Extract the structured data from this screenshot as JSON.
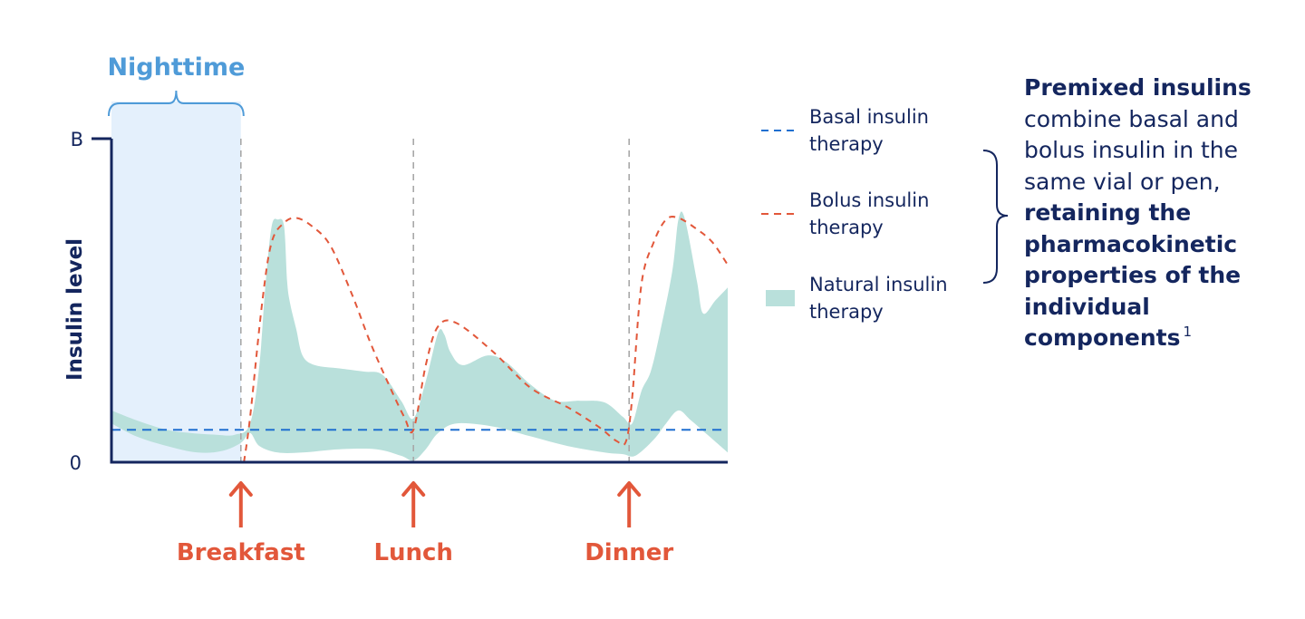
{
  "chart_data": {
    "type": "line",
    "ylabel": "Insulin level",
    "xlabel": "",
    "y_ticks": [
      "B",
      "0"
    ],
    "ylim": [
      0,
      100
    ],
    "xlim": [
      0,
      100
    ],
    "grid": false,
    "legend_position": "right",
    "legend": [
      {
        "name_line1": "Basal insulin",
        "name_line2": "therapy",
        "style": "dashed-line",
        "color": "#1f6fd0"
      },
      {
        "name_line1": "Bolus insulin",
        "name_line2": "therapy",
        "style": "dashed-line",
        "color": "#e2573a"
      },
      {
        "name_line1": "Natural insulin",
        "name_line2": "therapy",
        "style": "filled-area",
        "color": "#b9e0db"
      }
    ],
    "nighttime": {
      "label": "Nighttime",
      "x_start": 0,
      "x_end": 21
    },
    "meals": [
      {
        "label": "Breakfast",
        "x": 21
      },
      {
        "label": "Lunch",
        "x": 49
      },
      {
        "label": "Dinner",
        "x": 84
      }
    ],
    "series": [
      {
        "name": "Basal insulin therapy",
        "type": "line",
        "points": [
          [
            0,
            10
          ],
          [
            100,
            10
          ]
        ]
      },
      {
        "name": "Bolus insulin therapy",
        "type": "line",
        "points": [
          [
            21.5,
            0
          ],
          [
            22.5,
            14
          ],
          [
            24.5,
            50
          ],
          [
            26,
            68
          ],
          [
            28,
            74
          ],
          [
            30,
            75.5
          ],
          [
            32.5,
            73
          ],
          [
            35.5,
            67
          ],
          [
            39,
            52
          ],
          [
            42,
            37
          ],
          [
            45,
            24
          ],
          [
            47.5,
            14
          ],
          [
            49,
            10
          ],
          [
            51,
            30
          ],
          [
            53,
            42
          ],
          [
            56,
            43
          ],
          [
            62,
            34
          ],
          [
            68,
            23
          ],
          [
            74,
            17
          ],
          [
            79,
            11
          ],
          [
            82,
            6.5
          ],
          [
            83.5,
            6.5
          ],
          [
            84.5,
            20
          ],
          [
            86,
            55
          ],
          [
            88,
            68
          ],
          [
            90,
            75
          ],
          [
            92,
            75.5
          ],
          [
            95,
            72
          ],
          [
            97.5,
            68
          ],
          [
            100,
            61
          ]
        ]
      },
      {
        "name": "Natural insulin therapy",
        "type": "band",
        "upper": [
          [
            0,
            16
          ],
          [
            4,
            13
          ],
          [
            9,
            10
          ],
          [
            13,
            9
          ],
          [
            17,
            8.5
          ],
          [
            20,
            8.5
          ],
          [
            22.5,
            12
          ],
          [
            24,
            30
          ],
          [
            25,
            55
          ],
          [
            26,
            73
          ],
          [
            27,
            75
          ],
          [
            28,
            73
          ],
          [
            28.5,
            56
          ],
          [
            29,
            49
          ],
          [
            30,
            41
          ],
          [
            31,
            33
          ],
          [
            33,
            30
          ],
          [
            37,
            29
          ],
          [
            41,
            28
          ],
          [
            44,
            27
          ],
          [
            47,
            19
          ],
          [
            49,
            13.5
          ],
          [
            51,
            25
          ],
          [
            53,
            40
          ],
          [
            54,
            39.5
          ],
          [
            55,
            34
          ],
          [
            57,
            30
          ],
          [
            61,
            33
          ],
          [
            64,
            31
          ],
          [
            68,
            24
          ],
          [
            72,
            19
          ],
          [
            76,
            19
          ],
          [
            80,
            18.5
          ],
          [
            83,
            14
          ],
          [
            84.5,
            12
          ],
          [
            86,
            22
          ],
          [
            87.5,
            28
          ],
          [
            89,
            40
          ],
          [
            91,
            59
          ],
          [
            92,
            75
          ],
          [
            93,
            75.5
          ],
          [
            95,
            56
          ],
          [
            96,
            46
          ],
          [
            98,
            50
          ],
          [
            100,
            54
          ]
        ],
        "lower": [
          [
            0,
            12
          ],
          [
            4,
            8
          ],
          [
            9,
            5
          ],
          [
            14,
            3
          ],
          [
            18,
            3.5
          ],
          [
            21,
            6
          ],
          [
            22.5,
            9
          ],
          [
            24,
            5
          ],
          [
            27,
            3
          ],
          [
            31,
            3
          ],
          [
            37,
            4
          ],
          [
            43,
            4
          ],
          [
            47,
            2
          ],
          [
            49,
            0.5
          ],
          [
            51,
            4
          ],
          [
            53,
            9
          ],
          [
            56,
            12
          ],
          [
            62,
            11
          ],
          [
            68,
            8
          ],
          [
            74,
            5
          ],
          [
            80,
            3
          ],
          [
            83,
            2.5
          ],
          [
            85,
            2
          ],
          [
            88,
            7
          ],
          [
            90,
            12
          ],
          [
            92,
            16
          ],
          [
            94,
            13
          ],
          [
            97,
            8
          ],
          [
            100,
            3
          ]
        ]
      }
    ]
  },
  "callout": {
    "bold1": "Premixed insulins",
    "normal1": " combine basal and bolus insulin in the same vial or pen, ",
    "bold2": "retaining the pharmacokinetic properties of the individual components",
    "sup": "1"
  },
  "colors": {
    "navy": "#14265e",
    "orange": "#e2573a",
    "blue_label": "#4f9bd8",
    "basal": "#1f6fd0",
    "band": "#b9e0db",
    "night_fill": "#e4f0fc",
    "vline": "#a8a8a8"
  }
}
